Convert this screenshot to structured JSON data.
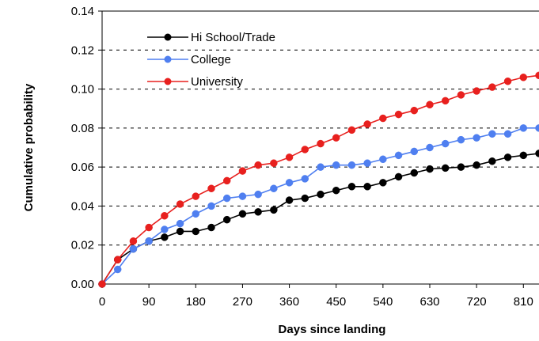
{
  "chart_data": {
    "type": "line",
    "xlabel": "Days since landing",
    "ylabel": "Cumulative probability",
    "xlim": [
      0,
      840
    ],
    "ylim": [
      0,
      0.14
    ],
    "x_ticks": [
      0,
      90,
      180,
      270,
      360,
      450,
      540,
      630,
      720,
      810
    ],
    "y_ticks": [
      "0.00",
      "0.02",
      "0.04",
      "0.06",
      "0.08",
      "0.10",
      "0.12",
      "0.14"
    ],
    "grid": "horizontal dashed",
    "legend_position": "top-left",
    "x": [
      0,
      30,
      60,
      90,
      120,
      150,
      180,
      210,
      240,
      270,
      300,
      330,
      360,
      390,
      420,
      450,
      480,
      510,
      540,
      570,
      600,
      630,
      660,
      690,
      720,
      750,
      780,
      810,
      840
    ],
    "series": [
      {
        "name": "Hi School/Trade",
        "color": "#000000",
        "values": [
          0.0,
          0.0125,
          0.018,
          0.022,
          0.024,
          0.027,
          0.027,
          0.029,
          0.033,
          0.036,
          0.037,
          0.038,
          0.043,
          0.044,
          0.046,
          0.048,
          0.05,
          0.05,
          0.052,
          0.055,
          0.057,
          0.059,
          0.0595,
          0.06,
          0.061,
          0.063,
          0.065,
          0.066,
          0.067
        ]
      },
      {
        "name": "College",
        "color": "#4F7FF0",
        "values": [
          0.0,
          0.0075,
          0.018,
          0.022,
          0.028,
          0.031,
          0.036,
          0.04,
          0.044,
          0.045,
          0.046,
          0.049,
          0.052,
          0.054,
          0.06,
          0.061,
          0.061,
          0.062,
          0.064,
          0.066,
          0.068,
          0.07,
          0.072,
          0.074,
          0.075,
          0.077,
          0.077,
          0.08,
          0.08
        ]
      },
      {
        "name": "University",
        "color": "#E8201E",
        "values": [
          0.0,
          0.0125,
          0.022,
          0.029,
          0.035,
          0.041,
          0.045,
          0.049,
          0.053,
          0.058,
          0.061,
          0.062,
          0.065,
          0.069,
          0.072,
          0.075,
          0.079,
          0.082,
          0.085,
          0.087,
          0.089,
          0.092,
          0.094,
          0.097,
          0.099,
          0.101,
          0.104,
          0.106,
          0.107
        ]
      }
    ]
  }
}
